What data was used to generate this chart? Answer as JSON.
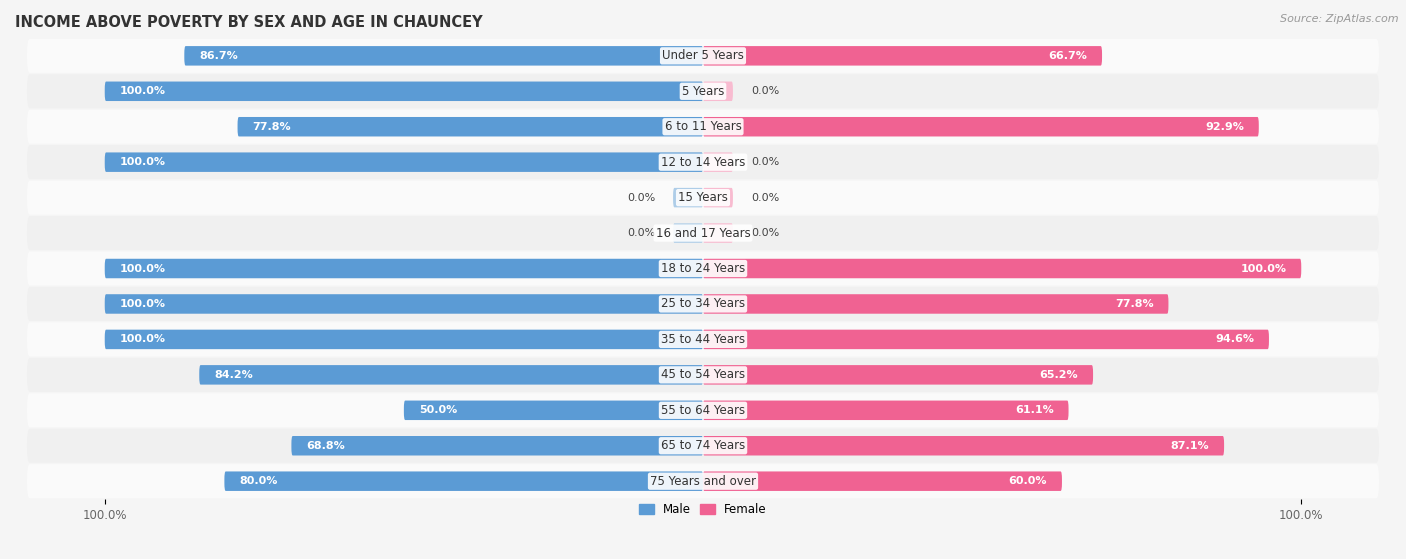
{
  "title": "INCOME ABOVE POVERTY BY SEX AND AGE IN CHAUNCEY",
  "source": "Source: ZipAtlas.com",
  "categories": [
    "Under 5 Years",
    "5 Years",
    "6 to 11 Years",
    "12 to 14 Years",
    "15 Years",
    "16 and 17 Years",
    "18 to 24 Years",
    "25 to 34 Years",
    "35 to 44 Years",
    "45 to 54 Years",
    "55 to 64 Years",
    "65 to 74 Years",
    "75 Years and over"
  ],
  "male": [
    86.7,
    100.0,
    77.8,
    100.0,
    0.0,
    0.0,
    100.0,
    100.0,
    100.0,
    84.2,
    50.0,
    68.8,
    80.0
  ],
  "female": [
    66.7,
    0.0,
    92.9,
    0.0,
    0.0,
    0.0,
    100.0,
    77.8,
    94.6,
    65.2,
    61.1,
    87.1,
    60.0
  ],
  "male_color": "#5b9bd5",
  "female_color": "#f06292",
  "male_color_light": "#aecde8",
  "female_color_light": "#f8bbd0",
  "row_color_odd": "#f0f0f0",
  "row_color_even": "#fafafa",
  "bg_color": "#f5f5f5",
  "max_val": 100.0,
  "bar_height": 0.55,
  "legend_male": "Male",
  "legend_female": "Female",
  "title_fontsize": 10.5,
  "label_fontsize": 8.0,
  "cat_fontsize": 8.5,
  "tick_fontsize": 8.5,
  "source_fontsize": 8.0
}
